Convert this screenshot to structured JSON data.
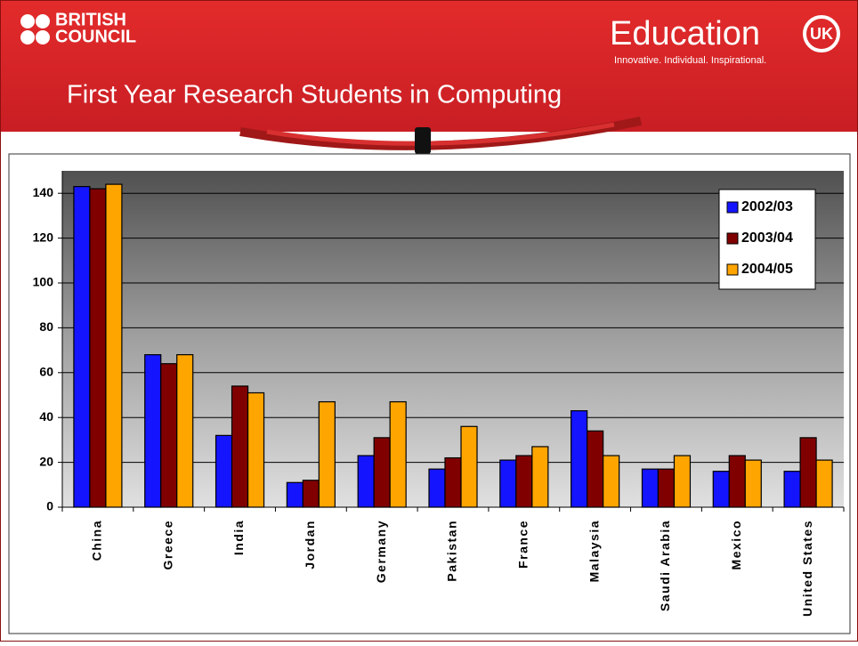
{
  "header": {
    "brand_line1": "BRITISH",
    "brand_line2": "COUNCIL",
    "logo_word": "Education",
    "logo_mark": "UK",
    "tagline": "Innovative. Individual. Inspirational."
  },
  "chart_data": {
    "type": "bar",
    "title": "First Year Research Students in Computing",
    "categories": [
      "China",
      "Greece",
      "India",
      "Jordan",
      "Germany",
      "Pakistan",
      "France",
      "Malaysia",
      "Saudi Arabia",
      "Mexico",
      "United States"
    ],
    "series": [
      {
        "name": "2002/03",
        "color": "#1414ff",
        "values": [
          143,
          68,
          32,
          11,
          23,
          17,
          21,
          43,
          17,
          16,
          16
        ]
      },
      {
        "name": "2003/04",
        "color": "#800000",
        "values": [
          142,
          64,
          54,
          12,
          31,
          22,
          23,
          34,
          17,
          23,
          31
        ]
      },
      {
        "name": "2004/05",
        "color": "#ffa500",
        "values": [
          144,
          68,
          51,
          47,
          47,
          36,
          27,
          23,
          23,
          21,
          21
        ]
      }
    ],
    "ylim": [
      0,
      150
    ],
    "yticks": [
      0,
      20,
      40,
      60,
      80,
      100,
      120,
      140
    ],
    "grid": true,
    "legend": "upper right"
  }
}
